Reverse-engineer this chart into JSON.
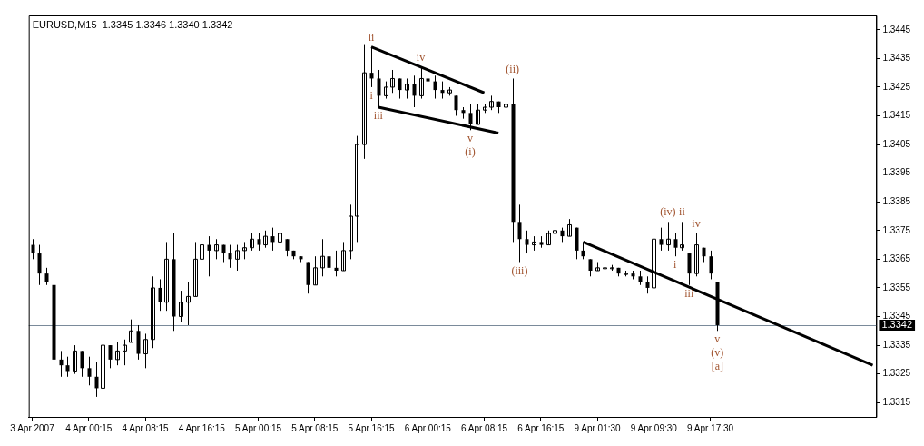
{
  "chart_data": {
    "type": "candlestick",
    "title": "EURUSD,M15  1.3345 1.3346 1.3340 1.3342",
    "categories": [
      "3 Apr 2007",
      null,
      null,
      null,
      null,
      null,
      null,
      null,
      "4 Apr 00:15",
      null,
      null,
      null,
      null,
      null,
      null,
      null,
      "4 Apr 08:15",
      null,
      null,
      null,
      null,
      null,
      null,
      null,
      "4 Apr 16:15",
      null,
      null,
      null,
      null,
      null,
      null,
      null,
      "5 Apr 00:15",
      null,
      null,
      null,
      null,
      null,
      null,
      null,
      "5 Apr 08:15",
      null,
      null,
      null,
      null,
      null,
      null,
      null,
      "5 Apr 16:15",
      null,
      null,
      null,
      null,
      null,
      null,
      null,
      "6 Apr 00:15",
      null,
      null,
      null,
      null,
      null,
      null,
      null,
      "6 Apr 08:15",
      null,
      null,
      null,
      null,
      null,
      null,
      null,
      "6 Apr 16:15",
      null,
      null,
      null,
      null,
      null,
      null,
      null,
      "9 Apr 01:30",
      null,
      null,
      null,
      null,
      null,
      null,
      null,
      "9 Apr 09:30",
      null,
      null,
      null,
      null,
      null,
      null,
      null,
      "9 Apr 17:30",
      null,
      null,
      null,
      null,
      null,
      null,
      null,
      null,
      null,
      null,
      null,
      null,
      null,
      null,
      null,
      null,
      null,
      null,
      null,
      null,
      null,
      null,
      null
    ],
    "ohlc": [
      [
        1.337,
        1.3372,
        1.3365,
        1.3367
      ],
      [
        1.3367,
        1.337,
        1.3356,
        1.336
      ],
      [
        1.336,
        1.3362,
        1.3356,
        1.3357
      ],
      [
        1.3356,
        1.3356,
        1.3318,
        1.333
      ],
      [
        1.333,
        1.3333,
        1.3324,
        1.3328
      ],
      [
        1.3328,
        1.3331,
        1.3324,
        1.3326
      ],
      [
        1.3326,
        1.3335,
        1.3325,
        1.3333
      ],
      [
        1.3333,
        1.3333,
        1.3324,
        1.3327
      ],
      [
        1.3327,
        1.3331,
        1.3321,
        1.3324
      ],
      [
        1.3324,
        1.3329,
        1.3317,
        1.332
      ],
      [
        1.332,
        1.3339,
        1.332,
        1.3335
      ],
      [
        1.3335,
        1.3335,
        1.3327,
        1.333
      ],
      [
        1.333,
        1.3336,
        1.3328,
        1.3333
      ],
      [
        1.3333,
        1.3337,
        1.3328,
        1.3335
      ],
      [
        1.3336,
        1.3344,
        1.3336,
        1.334
      ],
      [
        1.334,
        1.3342,
        1.333,
        1.3332
      ],
      [
        1.3332,
        1.3339,
        1.3327,
        1.3337
      ],
      [
        1.3337,
        1.3359,
        1.3334,
        1.3355
      ],
      [
        1.3355,
        1.3358,
        1.3347,
        1.335
      ],
      [
        1.335,
        1.3371,
        1.3347,
        1.3365
      ],
      [
        1.3365,
        1.3374,
        1.334,
        1.3345
      ],
      [
        1.3345,
        1.3354,
        1.3343,
        1.335
      ],
      [
        1.335,
        1.3357,
        1.3342,
        1.3352
      ],
      [
        1.3352,
        1.3371,
        1.3352,
        1.3365
      ],
      [
        1.3365,
        1.338,
        1.3359,
        1.337
      ],
      [
        1.337,
        1.3373,
        1.3359,
        1.3368
      ],
      [
        1.3368,
        1.3372,
        1.3365,
        1.337
      ],
      [
        1.337,
        1.337,
        1.3364,
        1.3367
      ],
      [
        1.3367,
        1.337,
        1.3362,
        1.3365
      ],
      [
        1.3365,
        1.337,
        1.3361,
        1.3368
      ],
      [
        1.3368,
        1.3371,
        1.3365,
        1.3369
      ],
      [
        1.3369,
        1.3374,
        1.3368,
        1.3372
      ],
      [
        1.3372,
        1.3374,
        1.3368,
        1.337
      ],
      [
        1.337,
        1.3375,
        1.3369,
        1.3373
      ],
      [
        1.3373,
        1.3376,
        1.3368,
        1.3371
      ],
      [
        1.3371,
        1.3376,
        1.3371,
        1.3374
      ],
      [
        1.3372,
        1.3372,
        1.3366,
        1.3368
      ],
      [
        1.3368,
        1.3368,
        1.3365,
        1.3366
      ],
      [
        1.3366,
        1.3366,
        1.3364,
        1.3365
      ],
      [
        1.3364,
        1.3364,
        1.3353,
        1.3356
      ],
      [
        1.3356,
        1.3366,
        1.3356,
        1.3362
      ],
      [
        1.3362,
        1.3372,
        1.3359,
        1.3366
      ],
      [
        1.3366,
        1.3372,
        1.3359,
        1.3362
      ],
      [
        1.3362,
        1.3368,
        1.3359,
        1.3361
      ],
      [
        1.3361,
        1.3371,
        1.3361,
        1.3368
      ],
      [
        1.3368,
        1.3384,
        1.3365,
        1.338
      ],
      [
        1.338,
        1.3408,
        1.3371,
        1.3405
      ],
      [
        1.3405,
        1.344,
        1.34,
        1.343
      ],
      [
        1.343,
        1.3439,
        1.3425,
        1.3428
      ],
      [
        1.3428,
        1.3431,
        1.3418,
        1.3422
      ],
      [
        1.3422,
        1.3427,
        1.3421,
        1.3425
      ],
      [
        1.3425,
        1.3431,
        1.3423,
        1.3428
      ],
      [
        1.3428,
        1.3428,
        1.3421,
        1.3424
      ],
      [
        1.3424,
        1.3428,
        1.3421,
        1.3426
      ],
      [
        1.3426,
        1.3429,
        1.3418,
        1.3422
      ],
      [
        1.3422,
        1.3432,
        1.3421,
        1.3428
      ],
      [
        1.3428,
        1.3431,
        1.3424,
        1.3427
      ],
      [
        1.3427,
        1.3429,
        1.3421,
        1.3424
      ],
      [
        1.3424,
        1.3427,
        1.3421,
        1.3423
      ],
      [
        1.3423,
        1.3425,
        1.3422,
        1.3424
      ],
      [
        1.3422,
        1.3422,
        1.3415,
        1.3417
      ],
      [
        1.3417,
        1.3418,
        1.3414,
        1.3416
      ],
      [
        1.3416,
        1.3419,
        1.341,
        1.3412
      ],
      [
        1.3412,
        1.3419,
        1.3412,
        1.3417
      ],
      [
        1.3417,
        1.3419,
        1.3416,
        1.3418
      ],
      [
        1.3418,
        1.3422,
        1.3417,
        1.342
      ],
      [
        1.342,
        1.342,
        1.3416,
        1.3418
      ],
      [
        1.3418,
        1.342,
        1.3417,
        1.3419
      ],
      [
        1.3419,
        1.3428,
        1.3371,
        1.3378
      ],
      [
        1.3378,
        1.3384,
        1.3364,
        1.3372
      ],
      [
        1.3372,
        1.3375,
        1.3367,
        1.337
      ],
      [
        1.337,
        1.3373,
        1.3368,
        1.3371
      ],
      [
        1.3371,
        1.3373,
        1.3369,
        1.337
      ],
      [
        1.337,
        1.3375,
        1.337,
        1.3374
      ],
      [
        1.3374,
        1.3377,
        1.3373,
        1.3375
      ],
      [
        1.3375,
        1.3376,
        1.3371,
        1.3373
      ],
      [
        1.3373,
        1.3379,
        1.3373,
        1.3377
      ],
      [
        1.3376,
        1.3376,
        1.3365,
        1.3368
      ],
      [
        1.3368,
        1.3371,
        1.3365,
        1.3366
      ],
      [
        1.3365,
        1.3365,
        1.3359,
        1.3361
      ],
      [
        1.3361,
        1.3364,
        1.3361,
        1.3362
      ],
      [
        1.3362,
        1.3363,
        1.3361,
        1.3362
      ],
      [
        1.3362,
        1.3363,
        1.3361,
        1.3362
      ],
      [
        1.3362,
        1.3362,
        1.3359,
        1.336
      ],
      [
        1.336,
        1.3361,
        1.3359,
        1.336
      ],
      [
        1.336,
        1.3361,
        1.3358,
        1.3359
      ],
      [
        1.3359,
        1.3361,
        1.3356,
        1.3357
      ],
      [
        1.3357,
        1.3359,
        1.3353,
        1.3355
      ],
      [
        1.3355,
        1.3376,
        1.3355,
        1.3372
      ],
      [
        1.3372,
        1.3376,
        1.3368,
        1.337
      ],
      [
        1.337,
        1.3378,
        1.3368,
        1.3372
      ],
      [
        1.3372,
        1.3374,
        1.3366,
        1.3369
      ],
      [
        1.3369,
        1.3378,
        1.3368,
        1.337
      ],
      [
        1.3367,
        1.3367,
        1.3356,
        1.336
      ],
      [
        1.336,
        1.3374,
        1.3359,
        1.337
      ],
      [
        1.3369,
        1.3369,
        1.3364,
        1.3366
      ],
      [
        1.3366,
        1.3368,
        1.3358,
        1.336
      ],
      [
        1.3357,
        1.3357,
        1.334,
        1.3342
      ],
      null,
      null,
      null,
      null,
      null,
      null,
      null,
      null,
      null,
      null,
      null,
      null,
      null,
      null,
      null,
      null,
      null,
      null,
      null,
      null,
      null,
      null
    ],
    "color": "#000000",
    "series": [
      {
        "type": "line",
        "color": "#000000",
        "values": [
          null,
          null,
          null,
          null,
          null,
          null,
          null,
          null,
          null,
          null,
          null,
          null,
          null,
          null,
          null,
          null,
          null,
          null,
          null,
          null,
          null,
          null,
          null,
          null,
          null,
          null,
          null,
          null,
          null,
          null,
          null,
          null,
          null,
          null,
          null,
          null,
          null,
          null,
          null,
          null,
          null,
          null,
          null,
          null,
          null,
          null,
          null,
          null,
          1.3439,
          null,
          null,
          null,
          null,
          null,
          null,
          null,
          null,
          null,
          null,
          null,
          null,
          null,
          null,
          null,
          1.3423,
          null,
          null,
          null,
          null,
          null,
          null,
          null,
          null,
          null,
          null,
          null,
          null,
          null,
          null,
          null,
          null,
          null,
          null,
          null,
          null,
          null,
          null,
          null,
          null,
          null,
          null,
          null,
          null,
          null,
          null,
          null,
          null,
          null,
          null,
          null,
          null,
          null,
          null,
          null,
          null,
          null,
          null,
          null,
          null,
          null,
          null,
          null,
          null,
          null,
          null,
          null,
          null,
          null,
          null,
          null
        ]
      },
      {
        "type": "line",
        "color": "#000000",
        "values": [
          null,
          null,
          null,
          null,
          null,
          null,
          null,
          null,
          null,
          null,
          null,
          null,
          null,
          null,
          null,
          null,
          null,
          null,
          null,
          null,
          null,
          null,
          null,
          null,
          null,
          null,
          null,
          null,
          null,
          null,
          null,
          null,
          null,
          null,
          null,
          null,
          null,
          null,
          null,
          null,
          null,
          null,
          null,
          null,
          null,
          null,
          null,
          null,
          null,
          1.3418,
          null,
          null,
          null,
          null,
          null,
          null,
          null,
          null,
          null,
          null,
          null,
          null,
          null,
          null,
          null,
          null,
          1.3409,
          null,
          null,
          null,
          null,
          null,
          null,
          null,
          null,
          null,
          null,
          null,
          null,
          null,
          null,
          null,
          null,
          null,
          null,
          null,
          null,
          null,
          null,
          null,
          null,
          null,
          null,
          null,
          null,
          null,
          null,
          null,
          null,
          null,
          null,
          null,
          null,
          null,
          null,
          null,
          null,
          null,
          null,
          null,
          null,
          null,
          null,
          null,
          null,
          null,
          null,
          null,
          null,
          null
        ]
      },
      {
        "type": "line",
        "color": "#000000",
        "values": [
          null,
          null,
          null,
          null,
          null,
          null,
          null,
          null,
          null,
          null,
          null,
          null,
          null,
          null,
          null,
          null,
          null,
          null,
          null,
          null,
          null,
          null,
          null,
          null,
          null,
          null,
          null,
          null,
          null,
          null,
          null,
          null,
          null,
          null,
          null,
          null,
          null,
          null,
          null,
          null,
          null,
          null,
          null,
          null,
          null,
          null,
          null,
          null,
          null,
          null,
          null,
          null,
          null,
          null,
          null,
          null,
          null,
          null,
          null,
          null,
          null,
          null,
          null,
          null,
          null,
          null,
          null,
          null,
          null,
          null,
          null,
          null,
          null,
          null,
          null,
          null,
          null,
          null,
          1.3371,
          null,
          null,
          null,
          null,
          null,
          null,
          null,
          null,
          null,
          null,
          null,
          null,
          null,
          null,
          null,
          null,
          null,
          null,
          null,
          null,
          null,
          null,
          null,
          null,
          null,
          null,
          null,
          null,
          null,
          null,
          null,
          null,
          null,
          null,
          null,
          null,
          null,
          null,
          null,
          null,
          1.3328
        ]
      }
    ],
    "ylim": [
      1.331,
      1.345
    ],
    "yticks": [
      1.3315,
      1.3325,
      1.3335,
      1.3345,
      1.3355,
      1.3365,
      1.3375,
      1.3385,
      1.3395,
      1.3405,
      1.3415,
      1.3425,
      1.3435,
      1.3445
    ],
    "ref_lines": [
      {
        "axis": "y",
        "value": 1.3342,
        "label": "1.3342",
        "color": "#7a8a9a"
      }
    ],
    "annotations": [
      {
        "text": "ii",
        "y": 1.3439
      },
      {
        "text": "i",
        "y": 1.3425
      },
      {
        "text": "iii",
        "y": 1.3418
      },
      {
        "text": "iv",
        "y": 1.3432
      },
      {
        "text": "v",
        "y": 1.341
      },
      {
        "text": "(i)",
        "y": 1.341
      },
      {
        "text": "(ii)",
        "y": 1.3428
      },
      {
        "text": "(iii)",
        "y": 1.3364
      },
      {
        "text": "(iv)",
        "y": 1.3378
      },
      {
        "text": "i",
        "y": 1.3366
      },
      {
        "text": "ii",
        "y": 1.3378
      },
      {
        "text": "iii",
        "y": 1.3356
      },
      {
        "text": "iv",
        "y": 1.3374
      },
      {
        "text": "v",
        "y": 1.334
      },
      {
        "text": "(v)",
        "y": 1.334
      },
      {
        "text": "[a]",
        "y": 1.334
      }
    ],
    "grid": false,
    "legend": false
  }
}
